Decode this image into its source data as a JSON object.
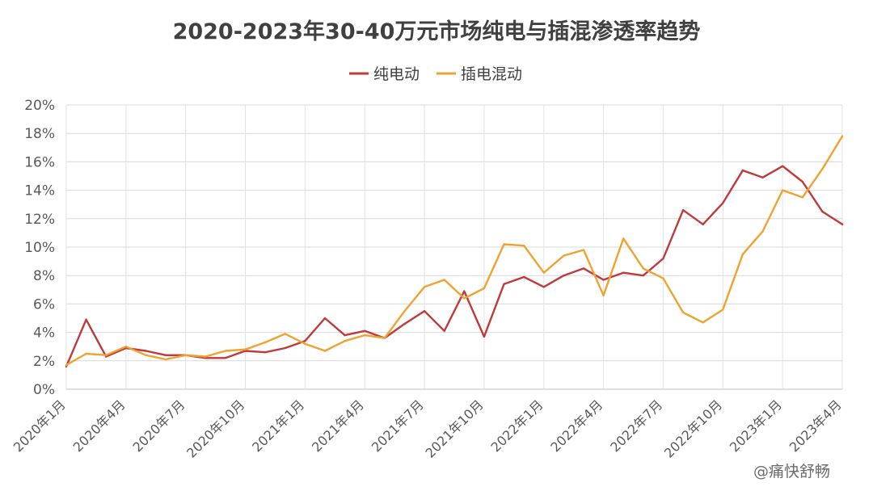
{
  "watermark": "@痛快舒畅",
  "chart_data": {
    "type": "line",
    "title": "2020-2023年30-40万元市场纯电与插混渗透率趋势",
    "xlabel": "",
    "ylabel": "",
    "x": [
      "2020年1月",
      "2020年2月",
      "2020年3月",
      "2020年4月",
      "2020年5月",
      "2020年6月",
      "2020年7月",
      "2020年8月",
      "2020年9月",
      "2020年10月",
      "2020年11月",
      "2020年12月",
      "2021年1月",
      "2021年2月",
      "2021年3月",
      "2021年4月",
      "2021年5月",
      "2021年6月",
      "2021年7月",
      "2021年8月",
      "2021年9月",
      "2021年10月",
      "2021年11月",
      "2021年12月",
      "2022年1月",
      "2022年2月",
      "2022年3月",
      "2022年4月",
      "2022年5月",
      "2022年6月",
      "2022年7月",
      "2022年8月",
      "2022年9月",
      "2022年10月",
      "2022年11月",
      "2022年12月",
      "2023年1月",
      "2023年2月",
      "2023年3月",
      "2023年4月"
    ],
    "tick_labels": [
      "2020年1月",
      "2020年4月",
      "2020年7月",
      "2020年10月",
      "2021年1月",
      "2021年4月",
      "2021年7月",
      "2021年10月",
      "2022年1月",
      "2022年4月",
      "2022年7月",
      "2022年10月",
      "2023年1月",
      "2023年4月"
    ],
    "y_tick_labels": [
      "0%",
      "2%",
      "4%",
      "6%",
      "8%",
      "10%",
      "12%",
      "14%",
      "16%",
      "18%",
      "20%"
    ],
    "ylim": [
      0,
      20
    ],
    "y_unit": "%",
    "grid": true,
    "legend_position": "top",
    "series": [
      {
        "name": "纯电动",
        "color": "#c0393b",
        "values": [
          1.6,
          4.9,
          2.3,
          2.9,
          2.7,
          2.4,
          2.4,
          2.2,
          2.2,
          2.7,
          2.6,
          2.9,
          3.4,
          5.0,
          3.8,
          4.1,
          3.6,
          4.6,
          5.5,
          4.1,
          6.9,
          3.7,
          7.4,
          7.9,
          7.2,
          8.0,
          8.5,
          7.7,
          8.2,
          8.0,
          9.2,
          12.6,
          11.6,
          13.1,
          15.4,
          14.9,
          15.7,
          14.6,
          12.5,
          11.6
        ]
      },
      {
        "name": "插电混动",
        "color": "#f0a230",
        "values": [
          1.7,
          2.5,
          2.4,
          3.0,
          2.4,
          2.1,
          2.4,
          2.3,
          2.7,
          2.8,
          3.3,
          3.9,
          3.2,
          2.7,
          3.4,
          3.8,
          3.6,
          5.5,
          7.2,
          7.7,
          6.4,
          7.1,
          10.2,
          10.1,
          8.2,
          9.4,
          9.8,
          6.6,
          10.6,
          8.5,
          7.8,
          5.4,
          4.7,
          5.6,
          9.5,
          11.1,
          14.0,
          13.5,
          15.5,
          17.8
        ]
      }
    ]
  }
}
